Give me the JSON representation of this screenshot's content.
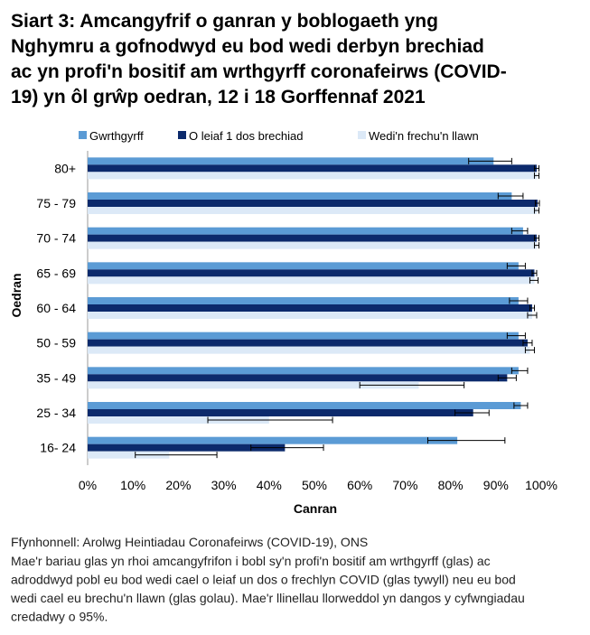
{
  "chart_data": {
    "type": "bar",
    "orientation": "horizontal",
    "title": [
      "Siart 3: Amcangyfrif o ganran y boblogaeth yng",
      "Nghymru a gofnodwyd eu bod wedi derbyn brechiad",
      "ac yn profi'n bositif am wrthgyrff coronafeirws (COVID-",
      "19) yn ôl grŵp oedran, 12 i 18 Gorffennaf 2021"
    ],
    "categories": [
      "80+",
      "75 - 79",
      "70 - 74",
      "65 - 69",
      "60 - 64",
      "50 - 59",
      "35 - 49",
      "25 - 34",
      "16- 24"
    ],
    "series": [
      {
        "name": "Gwrthgyrff",
        "color": "#5b9bd5",
        "values": [
          89.5,
          93.5,
          96,
          95,
          95,
          95,
          95,
          95.5,
          81.5
        ],
        "ci_low": [
          84,
          90.5,
          93.5,
          92.5,
          93,
          92.5,
          93.5,
          94,
          75
        ],
        "ci_high": [
          93.5,
          96,
          97,
          96.5,
          97,
          96.5,
          97,
          97,
          92
        ]
      },
      {
        "name": "O leiaf 1 dos brechiad",
        "color": "#0c2a6c",
        "values": [
          99,
          99.2,
          99,
          98.5,
          98,
          97,
          92.5,
          85,
          43.5
        ],
        "ci_low": [
          98.5,
          98.7,
          98.5,
          98,
          97.5,
          96,
          90.5,
          81,
          36
        ],
        "ci_high": [
          99.5,
          99.6,
          99.5,
          99,
          98.5,
          98,
          94.5,
          88.5,
          52
        ]
      },
      {
        "name": "Wedi'n frechu'n llawn",
        "color": "#dce9f7",
        "values": [
          99,
          99,
          99,
          98.5,
          98,
          97.5,
          73,
          40,
          18
        ],
        "ci_low": [
          98.5,
          98.5,
          98.5,
          97.5,
          97,
          96.5,
          60,
          26.5,
          10.5
        ],
        "ci_high": [
          99.5,
          99.5,
          99.5,
          99.3,
          99,
          98.5,
          83,
          54,
          28.5
        ]
      }
    ],
    "xlim": [
      0,
      100
    ],
    "xticks": [
      {
        "value": 0,
        "label": "0%"
      },
      {
        "value": 10,
        "label": "10%"
      },
      {
        "value": 20,
        "label": "20%"
      },
      {
        "value": 30,
        "label": "30%"
      },
      {
        "value": 40,
        "label": "40%"
      },
      {
        "value": 50,
        "label": "50%"
      },
      {
        "value": 60,
        "label": "60%"
      },
      {
        "value": 70,
        "label": "70%"
      },
      {
        "value": 80,
        "label": "80%"
      },
      {
        "value": 90,
        "label": "90%"
      },
      {
        "value": 100,
        "label": "100%"
      }
    ],
    "xlabel": "Canran",
    "ylabel": "Oedran",
    "legend": "top",
    "source": "Ffynhonnell: Arolwg Heintiadau Coronafeirws (COVID-19), ONS",
    "note": [
      "Mae'r bariau glas yn rhoi amcangyfrifon i bobl sy'n profi'n bositif am wrthgyrff (glas) ac",
      "adroddwyd pobl eu bod wedi cael o leiaf un dos o frechlyn COVID (glas tywyll) neu eu bod",
      "wedi cael eu brechu'n llawn (glas golau).  Mae'r llinellau llorweddol yn dangos y cyfwngiadau",
      "credadwy o 95%."
    ]
  }
}
